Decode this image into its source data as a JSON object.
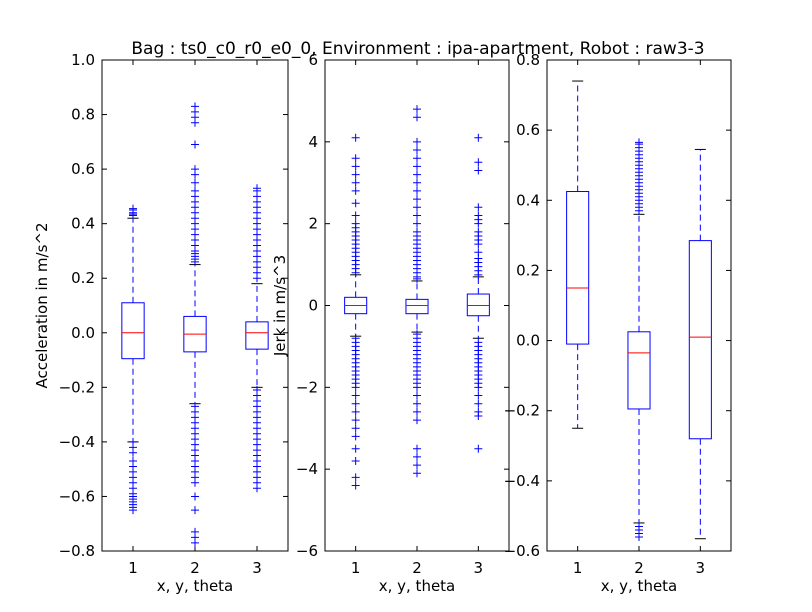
{
  "title": "Bag : ts0_c0_r0_e0_0, Environment : ipa-apartment, Robot : raw3-3",
  "colors": {
    "box": "#0000ff",
    "median": "#ff0000",
    "cap": "#000000",
    "background": "#ffffff"
  },
  "chart_data": [
    {
      "type": "box",
      "xlabel": "x, y, theta",
      "ylabel": "Acceleration in m/s^2",
      "ylim": [
        -0.8,
        1.0
      ],
      "yticks": [
        -0.8,
        -0.6,
        -0.4,
        -0.2,
        0.0,
        0.2,
        0.4,
        0.6,
        0.8,
        1.0
      ],
      "ytick_labels": [
        "−0.8",
        "−0.6",
        "−0.4",
        "−0.2",
        "0.0",
        "0.2",
        "0.4",
        "0.6",
        "0.8",
        "1.0"
      ],
      "categories": [
        "1",
        "2",
        "3"
      ],
      "boxes": [
        {
          "label": "1",
          "whisker_low": -0.4,
          "q1": -0.095,
          "median": 0.0,
          "q3": 0.11,
          "whisker_high": 0.42,
          "outliers": [
            0.43,
            0.435,
            0.44,
            0.45,
            0.455,
            -0.4,
            -0.42,
            -0.44,
            -0.47,
            -0.49,
            -0.51,
            -0.53,
            -0.55,
            -0.57,
            -0.59,
            -0.6,
            -0.61,
            -0.62,
            -0.63,
            -0.64,
            -0.65
          ]
        },
        {
          "label": "2",
          "whisker_low": -0.26,
          "q1": -0.07,
          "median": -0.005,
          "q3": 0.06,
          "whisker_high": 0.25,
          "outliers": [
            0.26,
            0.27,
            0.28,
            0.29,
            0.3,
            0.32,
            0.34,
            0.36,
            0.38,
            0.4,
            0.42,
            0.44,
            0.46,
            0.48,
            0.5,
            0.52,
            0.55,
            0.58,
            0.6,
            0.69,
            0.77,
            0.79,
            0.81,
            0.83,
            -0.27,
            -0.29,
            -0.31,
            -0.33,
            -0.35,
            -0.37,
            -0.39,
            -0.41,
            -0.43,
            -0.45,
            -0.47,
            -0.49,
            -0.51,
            -0.53,
            -0.55,
            -0.6,
            -0.65,
            -0.73,
            -0.75,
            -0.77
          ]
        },
        {
          "label": "3",
          "whisker_low": -0.2,
          "q1": -0.06,
          "median": 0.0,
          "q3": 0.04,
          "whisker_high": 0.18,
          "outliers": [
            0.2,
            0.22,
            0.24,
            0.26,
            0.28,
            0.3,
            0.32,
            0.34,
            0.36,
            0.38,
            0.4,
            0.42,
            0.44,
            0.46,
            0.48,
            0.5,
            0.52,
            0.53,
            -0.21,
            -0.23,
            -0.25,
            -0.27,
            -0.29,
            -0.31,
            -0.33,
            -0.35,
            -0.37,
            -0.39,
            -0.41,
            -0.43,
            -0.45,
            -0.47,
            -0.49,
            -0.51,
            -0.53,
            -0.55,
            -0.57
          ]
        }
      ]
    },
    {
      "type": "box",
      "xlabel": "x, y, theta",
      "ylabel": "Jerk in m/s^3",
      "ylim": [
        -6,
        6
      ],
      "yticks": [
        -6,
        -4,
        -2,
        0,
        2,
        4,
        6
      ],
      "ytick_labels": [
        "−6",
        "−4",
        "−2",
        "0",
        "2",
        "4",
        "6"
      ],
      "categories": [
        "1",
        "2",
        "3"
      ],
      "boxes": [
        {
          "label": "1",
          "whisker_low": -0.75,
          "q1": -0.2,
          "median": 0.0,
          "q3": 0.2,
          "whisker_high": 0.75,
          "outliers": [
            0.8,
            0.9,
            1.0,
            1.1,
            1.2,
            1.3,
            1.4,
            1.5,
            1.6,
            1.7,
            1.8,
            1.9,
            2.0,
            2.2,
            2.5,
            2.8,
            3.0,
            3.2,
            3.4,
            3.6,
            4.1,
            -0.8,
            -0.9,
            -1.0,
            -1.1,
            -1.2,
            -1.3,
            -1.4,
            -1.5,
            -1.6,
            -1.7,
            -1.8,
            -1.9,
            -2.0,
            -2.2,
            -2.4,
            -2.6,
            -2.8,
            -3.0,
            -3.2,
            -3.5,
            -3.8,
            -4.2,
            -4.4
          ]
        },
        {
          "label": "2",
          "whisker_low": -0.65,
          "q1": -0.2,
          "median": 0.0,
          "q3": 0.15,
          "whisker_high": 0.6,
          "outliers": [
            0.65,
            0.7,
            0.8,
            0.9,
            1.0,
            1.1,
            1.2,
            1.3,
            1.4,
            1.5,
            1.6,
            1.7,
            1.8,
            2.0,
            2.2,
            2.4,
            2.6,
            2.8,
            3.0,
            3.2,
            3.4,
            3.6,
            3.8,
            4.0,
            4.6,
            4.8,
            -0.7,
            -0.8,
            -0.9,
            -1.0,
            -1.1,
            -1.2,
            -1.3,
            -1.4,
            -1.5,
            -1.6,
            -1.7,
            -1.8,
            -1.9,
            -2.0,
            -2.2,
            -2.4,
            -2.6,
            -2.8,
            -3.5,
            -3.7,
            -3.9,
            -4.1
          ]
        },
        {
          "label": "3",
          "whisker_low": -0.8,
          "q1": -0.25,
          "median": 0.0,
          "q3": 0.28,
          "whisker_high": 0.7,
          "outliers": [
            0.75,
            0.85,
            0.95,
            1.05,
            1.15,
            1.3,
            1.5,
            1.6,
            1.7,
            1.8,
            2.0,
            2.1,
            2.2,
            2.4,
            3.3,
            3.5,
            4.1,
            -0.9,
            -1.0,
            -1.1,
            -1.2,
            -1.3,
            -1.4,
            -1.5,
            -1.6,
            -1.7,
            -1.8,
            -1.9,
            -2.0,
            -2.2,
            -2.4,
            -2.6,
            -2.7,
            -3.5
          ]
        }
      ]
    },
    {
      "type": "box",
      "xlabel": "x, y, theta",
      "ylabel": "",
      "ylim": [
        -0.6,
        0.8
      ],
      "yticks": [
        -0.6,
        -0.4,
        -0.2,
        0.0,
        0.2,
        0.4,
        0.6,
        0.8
      ],
      "ytick_labels": [
        "−0.6",
        "−0.4",
        "−0.2",
        "0.0",
        "0.2",
        "0.4",
        "0.6",
        "0.8"
      ],
      "categories": [
        "1",
        "2",
        "3"
      ],
      "boxes": [
        {
          "label": "1",
          "whisker_low": -0.25,
          "q1": -0.01,
          "median": 0.15,
          "q3": 0.425,
          "whisker_high": 0.74,
          "outliers": []
        },
        {
          "label": "2",
          "whisker_low": -0.52,
          "q1": -0.195,
          "median": -0.035,
          "q3": 0.025,
          "whisker_high": 0.36,
          "outliers": [
            0.37,
            0.38,
            0.39,
            0.4,
            0.41,
            0.42,
            0.43,
            0.44,
            0.45,
            0.46,
            0.47,
            0.48,
            0.49,
            0.5,
            0.51,
            0.52,
            0.53,
            0.54,
            0.55,
            0.56,
            0.565,
            -0.53,
            -0.54,
            -0.55,
            -0.56
          ]
        },
        {
          "label": "3",
          "whisker_low": -0.565,
          "q1": -0.28,
          "median": 0.01,
          "q3": 0.285,
          "whisker_high": 0.545,
          "outliers": []
        }
      ]
    }
  ]
}
